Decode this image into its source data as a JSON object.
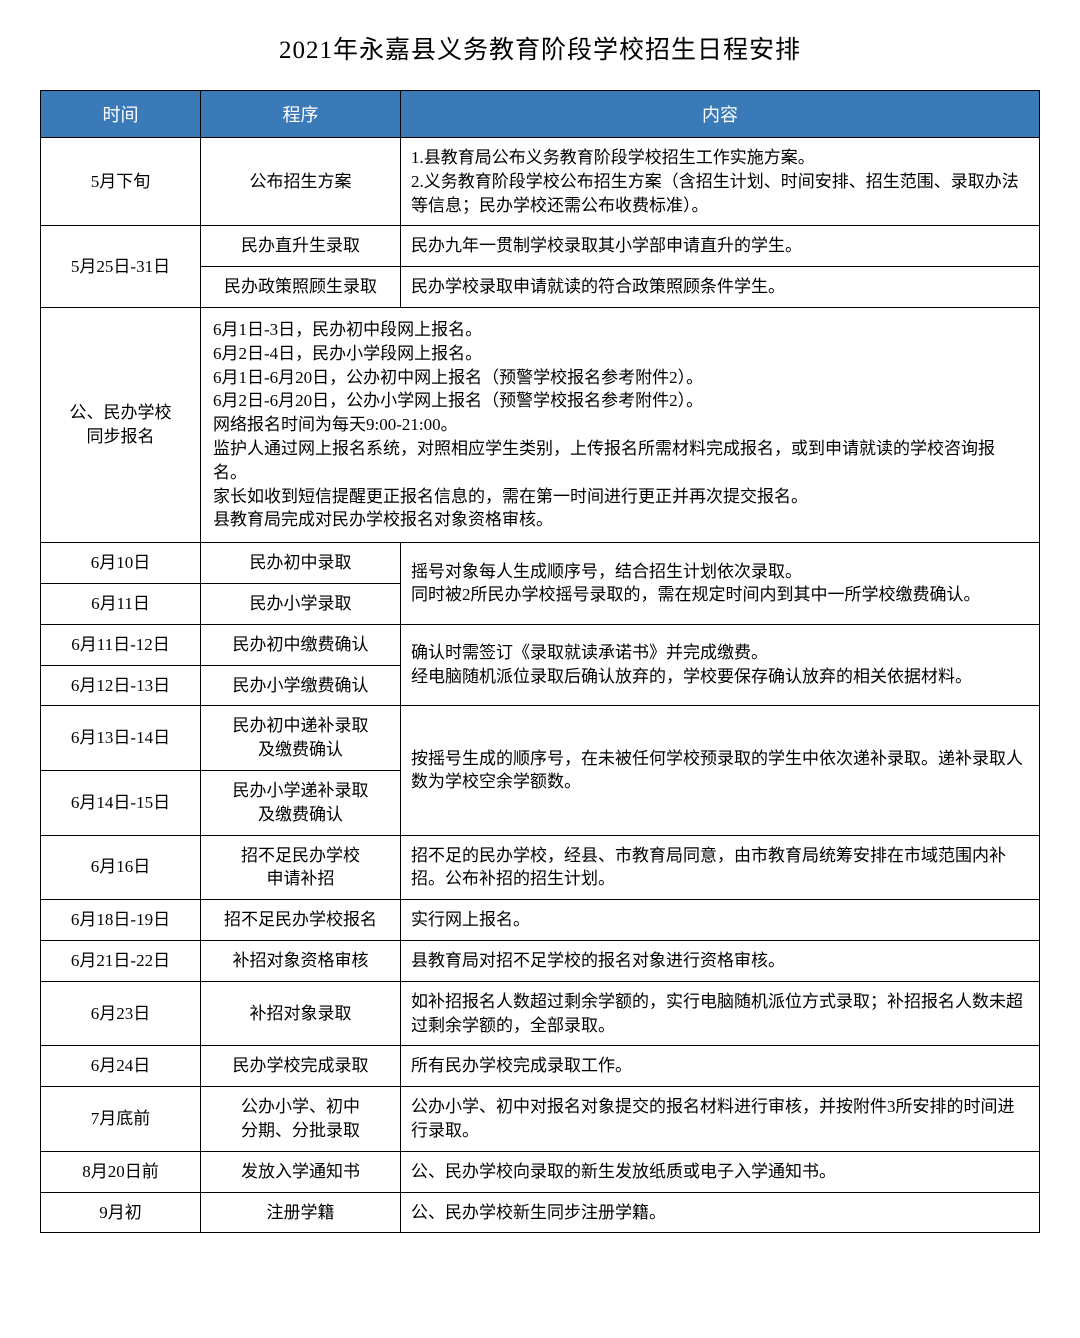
{
  "title": "2021年永嘉县义务教育阶段学校招生日程安排",
  "header": {
    "time": "时间",
    "proc": "程序",
    "content": "内容"
  },
  "styles": {
    "header_bg": "#3b7ab8",
    "header_fg": "#ffffff",
    "border_color": "#000000",
    "title_fontsize": 25,
    "cell_fontsize": 17
  },
  "r1": {
    "time": "5月下旬",
    "proc": "公布招生方案",
    "content": "1.县教育局公布义务教育阶段学校招生工作实施方案。\n2.义务教育阶段学校公布招生方案（含招生计划、时间安排、招生范围、录取办法等信息；民办学校还需公布收费标准）。"
  },
  "r2": {
    "time": "5月25日-31日",
    "proc_a": "民办直升生录取",
    "content_a": "民办九年一贯制学校录取其小学部申请直升的学生。",
    "proc_b": "民办政策照顾生录取",
    "content_b": "民办学校录取申请就读的符合政策照顾条件学生。"
  },
  "r3": {
    "time": "公、民办学校\n同步报名",
    "content": "6月1日-3日，民办初中段网上报名。\n6月2日-4日，民办小学段网上报名。\n6月1日-6月20日，公办初中网上报名（预警学校报名参考附件2）。\n6月2日-6月20日，公办小学网上报名（预警学校报名参考附件2）。\n网络报名时间为每天9:00-21:00。\n监护人通过网上报名系统，对照相应学生类别，上传报名所需材料完成报名，或到申请就读的学校咨询报名。\n家长如收到短信提醒更正报名信息的，需在第一时间进行更正并再次提交报名。\n县教育局完成对民办学校报名对象资格审核。"
  },
  "r4": {
    "time_a": "6月10日",
    "proc_a": "民办初中录取",
    "time_b": "6月11日",
    "proc_b": "民办小学录取",
    "content": "摇号对象每人生成顺序号，结合招生计划依次录取。\n同时被2所民办学校摇号录取的，需在规定时间内到其中一所学校缴费确认。"
  },
  "r5": {
    "time_a": "6月11日-12日",
    "proc_a": "民办初中缴费确认",
    "time_b": "6月12日-13日",
    "proc_b": "民办小学缴费确认",
    "content": "确认时需签订《录取就读承诺书》并完成缴费。\n经电脑随机派位录取后确认放弃的，学校要保存确认放弃的相关依据材料。"
  },
  "r6": {
    "time_a": "6月13日-14日",
    "proc_a": "民办初中递补录取\n及缴费确认",
    "time_b": "6月14日-15日",
    "proc_b": "民办小学递补录取\n及缴费确认",
    "content": "按摇号生成的顺序号，在未被任何学校预录取的学生中依次递补录取。递补录取人数为学校空余学额数。"
  },
  "r7": {
    "time": "6月16日",
    "proc": "招不足民办学校\n申请补招",
    "content": "招不足的民办学校，经县、市教育局同意，由市教育局统筹安排在市域范围内补招。公布补招的招生计划。"
  },
  "r8": {
    "time": "6月18日-19日",
    "proc": "招不足民办学校报名",
    "content": "实行网上报名。"
  },
  "r9": {
    "time": "6月21日-22日",
    "proc": "补招对象资格审核",
    "content": "县教育局对招不足学校的报名对象进行资格审核。"
  },
  "r10": {
    "time": "6月23日",
    "proc": "补招对象录取",
    "content": "如补招报名人数超过剩余学额的，实行电脑随机派位方式录取；补招报名人数未超过剩余学额的，全部录取。"
  },
  "r11": {
    "time": "6月24日",
    "proc": "民办学校完成录取",
    "content": "所有民办学校完成录取工作。"
  },
  "r12": {
    "time": "7月底前",
    "proc": "公办小学、初中\n分期、分批录取",
    "content": "公办小学、初中对报名对象提交的报名材料进行审核，并按附件3所安排的时间进行录取。"
  },
  "r13": {
    "time": "8月20日前",
    "proc": "发放入学通知书",
    "content": "公、民办学校向录取的新生发放纸质或电子入学通知书。"
  },
  "r14": {
    "time": "9月初",
    "proc": "注册学籍",
    "content": "公、民办学校新生同步注册学籍。"
  }
}
